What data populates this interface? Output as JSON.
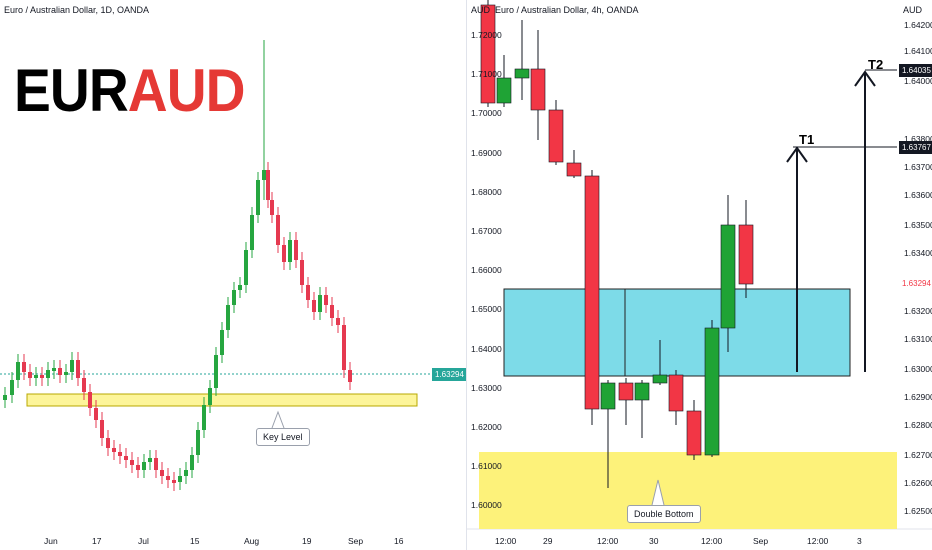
{
  "left_chart": {
    "header": "Euro / Australian Dollar, 1D, OANDA",
    "title_part1": "EUR",
    "title_part2": "AUD",
    "title_color1": "#000000",
    "title_color2": "#e53935",
    "current_price": "1.63294",
    "callout": "Key Level",
    "time_labels": [
      "Jun",
      "17",
      "Jul",
      "15",
      "Aug",
      "19",
      "Sep",
      "16"
    ],
    "colors": {
      "up": "#26a640",
      "down": "#e53950",
      "zone": "#fdf59a"
    }
  },
  "right_chart": {
    "header": "Euro / Australian Dollar, 4h, OANDA",
    "axis_title_left": "AUD",
    "axis_title_right": "AUD",
    "left_axis_labels": [
      "1.72000",
      "1.71000",
      "1.70000",
      "1.69000",
      "1.68000",
      "1.67000",
      "1.66000",
      "1.65000",
      "1.64000",
      "1.63000",
      "1.62000",
      "1.61000",
      "1.60000"
    ],
    "right_axis_labels": [
      "1.64200",
      "1.64100",
      "1.64000",
      "1.63800",
      "1.63700",
      "1.63600",
      "1.63500",
      "1.63400",
      "1.63200",
      "1.63100",
      "1.63000",
      "1.62900",
      "1.62800",
      "1.62700",
      "1.62600",
      "1.62500"
    ],
    "t2_price": "1.64035",
    "t1_price": "1.63767",
    "current_price": "1.63294",
    "t1_label": "T1",
    "t2_label": "T2",
    "callout": "Double Bottom",
    "time_labels": [
      "12:00",
      "29",
      "12:00",
      "30",
      "12:00",
      "Sep",
      "12:00",
      "3"
    ],
    "colors": {
      "up": "#1fa335",
      "down": "#f23645",
      "blue_zone": "#7ddbe8",
      "yellow_zone": "#fdf27a"
    }
  }
}
